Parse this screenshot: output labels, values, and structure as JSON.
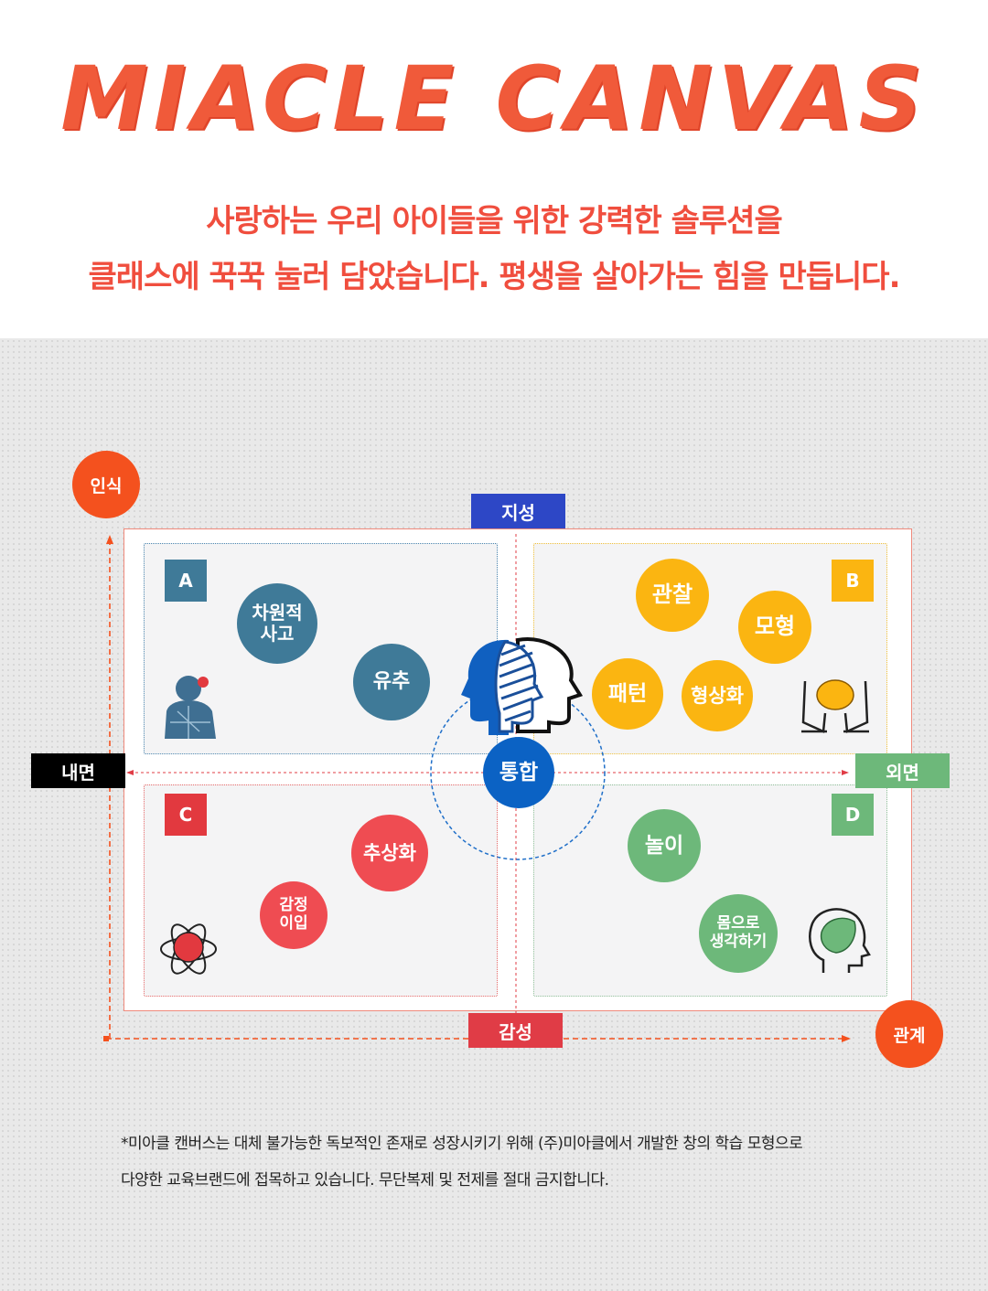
{
  "header": {
    "logo": "MIACLE CANVAS",
    "tagline_line1": "사랑하는 우리 아이들을 위한 강력한 솔루션을",
    "tagline_line2": "클래스에 꾹꾹 눌러 담았습니다. 평생을 살아가는 힘을 만듭니다."
  },
  "axes": {
    "corner_top_left": "인식",
    "corner_bottom_right": "관계",
    "top": "지성",
    "bottom": "감성",
    "left": "내면",
    "right": "외면",
    "center": "통합"
  },
  "quadrants": [
    {
      "letter": "A",
      "color": "#3f7a98",
      "bubbles": [
        "차원적\n사고",
        "유추"
      ],
      "icon": "puzzle-head-icon"
    },
    {
      "letter": "B",
      "color": "#fbb511",
      "bubbles": [
        "관찰",
        "모형",
        "패턴",
        "형상화"
      ],
      "icon": "hands-brain-icon"
    },
    {
      "letter": "C",
      "color": "#e2393f",
      "bubbles": [
        "추상화",
        "감정\n이입"
      ],
      "icon": "atom-brain-icon"
    },
    {
      "letter": "D",
      "color": "#6db87a",
      "bubbles": [
        "놀이",
        "몸으로\n생각하기"
      ],
      "icon": "head-leaf-icon"
    }
  ],
  "colors": {
    "accent_orange": "#f4511e",
    "top_axis": "#2d47c6",
    "bottom_axis": "#e03c46",
    "right_axis": "#6db87a",
    "left_axis": "#000000",
    "center": "#0b62c4"
  },
  "footnote": {
    "line1": "*미아클 캔버스는 대체 불가능한 독보적인 존재로 성장시키기 위해 (주)미아클에서 개발한 창의 학습 모형으로",
    "line2": "다양한 교육브랜드에 접목하고 있습니다. 무단복제 및 전제를 절대 금지합니다."
  }
}
